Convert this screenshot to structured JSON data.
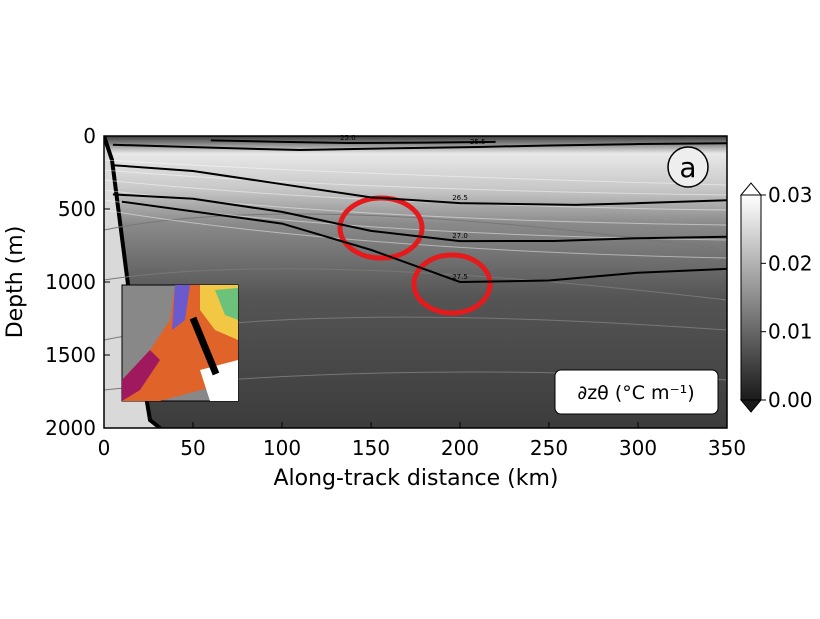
{
  "chart_data": {
    "type": "section",
    "panel_label": "a",
    "xlabel": "Along-track distance (km)",
    "ylabel": "Depth (m)",
    "xlim": [
      0,
      350
    ],
    "xticks": [
      0,
      50,
      100,
      150,
      200,
      250,
      300,
      350
    ],
    "ylim": [
      2000,
      0
    ],
    "yticks": [
      0,
      500,
      1000,
      1500,
      2000
    ],
    "colorbar": {
      "label": "∂zθ (°C m⁻¹)",
      "clim": [
        0,
        0.03
      ],
      "ticks": [
        {
          "value": 0,
          "label": "0.00"
        },
        0.01,
        0.02,
        0.03
      ],
      "colors": [
        "#1a1a1a",
        "#ffffff"
      ]
    },
    "contours": [
      {
        "name": "25.0",
        "x": [
          60,
          100,
          137,
          180,
          220
        ],
        "values": [
          30,
          40,
          48,
          45,
          40
        ]
      },
      {
        "name": "25.5",
        "x": [
          5,
          60,
          110,
          160,
          210,
          250,
          300,
          350
        ],
        "values": [
          60,
          80,
          96,
          85,
          75,
          65,
          55,
          50
        ]
      },
      {
        "name": "26.5",
        "x": [
          5,
          50,
          100,
          150,
          200,
          265,
          300,
          350
        ],
        "values": [
          200,
          240,
          330,
          420,
          460,
          472,
          460,
          440
        ]
      },
      {
        "name": "27.0",
        "x": [
          5,
          50,
          100,
          150,
          200,
          253,
          300,
          350
        ],
        "values": [
          400,
          430,
          520,
          650,
          720,
          719,
          700,
          690
        ]
      },
      {
        "name": "27.5",
        "x": [
          10,
          100,
          150,
          200,
          250,
          298,
          350
        ],
        "values": [
          450,
          600,
          780,
          1000,
          990,
          938,
          910
        ]
      }
    ],
    "contour_color": "#000000"
  }
}
